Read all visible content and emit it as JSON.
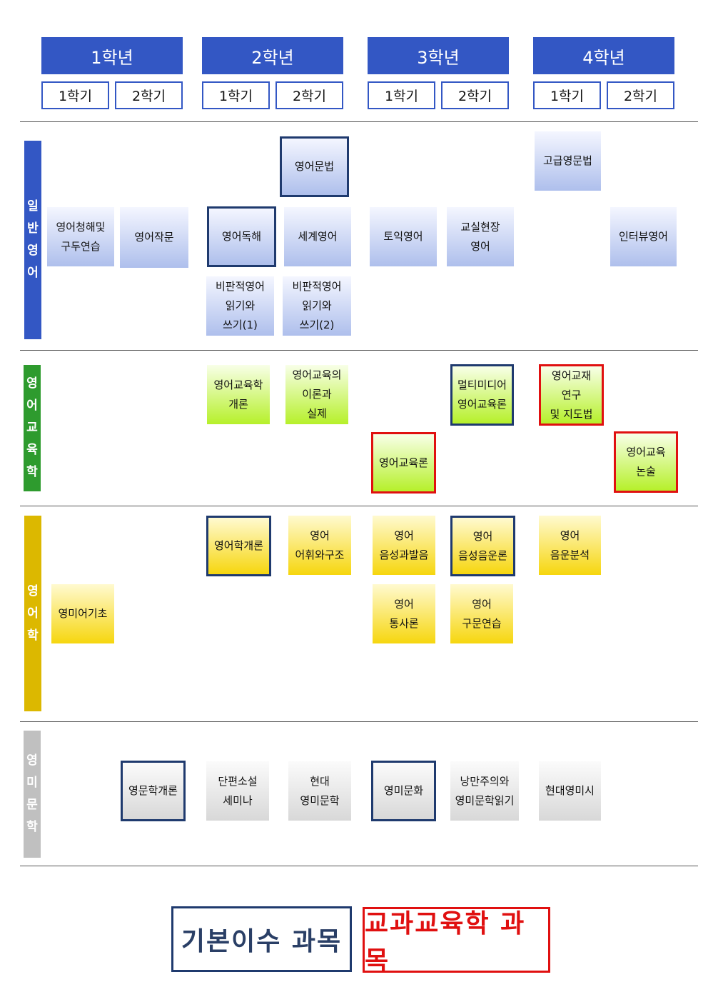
{
  "header": {
    "years": [
      {
        "label": "1학년",
        "semesters": [
          "1학기",
          "2학기"
        ]
      },
      {
        "label": "2학년",
        "semesters": [
          "1학기",
          "2학기"
        ]
      },
      {
        "label": "3학년",
        "semesters": [
          "1학기",
          "2학기"
        ]
      },
      {
        "label": "4학년",
        "semesters": [
          "1학기",
          "2학기"
        ]
      }
    ]
  },
  "categories": [
    {
      "label": "일반영어",
      "color": "#3357c4"
    },
    {
      "label": "영어교육학",
      "color": "#2e9b2e"
    },
    {
      "label": "영어학",
      "color": "#dcb800"
    },
    {
      "label": "영미문학",
      "color": "#c0c0c0"
    }
  ],
  "courses": [
    {
      "lines": [
        "영어문법"
      ],
      "category": "일반영어",
      "type": "기본이수"
    },
    {
      "lines": [
        "고급영문법"
      ],
      "category": "일반영어",
      "type": ""
    },
    {
      "lines": [
        "영어청해및",
        "구두연습"
      ],
      "category": "일반영어",
      "type": ""
    },
    {
      "lines": [
        "영어작문"
      ],
      "category": "일반영어",
      "type": ""
    },
    {
      "lines": [
        "영어독해"
      ],
      "category": "일반영어",
      "type": "기본이수"
    },
    {
      "lines": [
        "세계영어"
      ],
      "category": "일반영어",
      "type": ""
    },
    {
      "lines": [
        "토익영어"
      ],
      "category": "일반영어",
      "type": ""
    },
    {
      "lines": [
        "교실현장",
        "영어"
      ],
      "category": "일반영어",
      "type": ""
    },
    {
      "lines": [
        "인터뷰영어"
      ],
      "category": "일반영어",
      "type": ""
    },
    {
      "lines": [
        "비판적영어",
        "읽기와",
        "쓰기(1)"
      ],
      "category": "일반영어",
      "type": ""
    },
    {
      "lines": [
        "비판적영어",
        "읽기와",
        "쓰기(2)"
      ],
      "category": "일반영어",
      "type": ""
    },
    {
      "lines": [
        "영어교육학",
        "개론"
      ],
      "category": "영어교육학",
      "type": ""
    },
    {
      "lines": [
        "영어교육의",
        "이론과",
        "실제"
      ],
      "category": "영어교육학",
      "type": ""
    },
    {
      "lines": [
        "멀티미디어",
        "영어교육론"
      ],
      "category": "영어교육학",
      "type": "기본이수"
    },
    {
      "lines": [
        "영어교재",
        "연구",
        "및 지도법"
      ],
      "category": "영어교육학",
      "type": "교과교육학"
    },
    {
      "lines": [
        "영어교육론"
      ],
      "category": "영어교육학",
      "type": "교과교육학"
    },
    {
      "lines": [
        "영어교육",
        "논술"
      ],
      "category": "영어교육학",
      "type": "교과교육학"
    },
    {
      "lines": [
        "영어학개론"
      ],
      "category": "영어학",
      "type": "기본이수"
    },
    {
      "lines": [
        "영어",
        "어휘와구조"
      ],
      "category": "영어학",
      "type": ""
    },
    {
      "lines": [
        "영어",
        "음성과발음"
      ],
      "category": "영어학",
      "type": ""
    },
    {
      "lines": [
        "영어",
        "음성음운론"
      ],
      "category": "영어학",
      "type": "기본이수"
    },
    {
      "lines": [
        "영어",
        "음운분석"
      ],
      "category": "영어학",
      "type": ""
    },
    {
      "lines": [
        "영미어기초"
      ],
      "category": "영어학",
      "type": ""
    },
    {
      "lines": [
        "영어",
        "통사론"
      ],
      "category": "영어학",
      "type": ""
    },
    {
      "lines": [
        "영어",
        "구문연습"
      ],
      "category": "영어학",
      "type": ""
    },
    {
      "lines": [
        "영문학개론"
      ],
      "category": "영미문학",
      "type": "기본이수"
    },
    {
      "lines": [
        "단편소설",
        "세미나"
      ],
      "category": "영미문학",
      "type": ""
    },
    {
      "lines": [
        "현대",
        "영미문학"
      ],
      "category": "영미문학",
      "type": ""
    },
    {
      "lines": [
        "영미문화"
      ],
      "category": "영미문학",
      "type": "기본이수"
    },
    {
      "lines": [
        "낭만주의와",
        "영미문학읽기"
      ],
      "category": "영미문학",
      "type": ""
    },
    {
      "lines": [
        "현대영미시"
      ],
      "category": "영미문학",
      "type": ""
    }
  ],
  "legend": [
    {
      "label": "기본이수 과목",
      "color": "#1f3a6e"
    },
    {
      "label": "교과교육학 과목",
      "color": "#e01010"
    }
  ]
}
